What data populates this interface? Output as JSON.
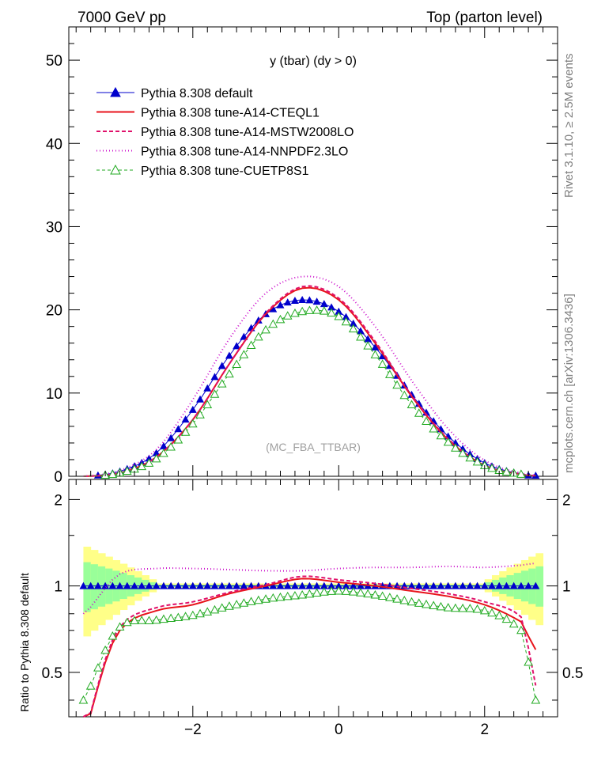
{
  "header": {
    "left": "7000 GeV pp",
    "right": "Top (parton level)"
  },
  "side_labels": {
    "rivet": "Rivet 3.1.10, ≥ 2.5M events",
    "mcplots": "mcplots.cern.ch [arXiv:1306.3436]"
  },
  "main_plot": {
    "title": "y (tbar) (dy > 0)",
    "watermark": "(MC_FBA_TTBAR)",
    "yticks": [
      "0",
      "10",
      "20",
      "30",
      "40",
      "50"
    ]
  },
  "ratio_plot": {
    "ylabel": "Ratio to Pythia 8.308 default",
    "yticks_left": [
      "0.5",
      "1",
      "2"
    ],
    "yticks_right": [
      "0.5",
      "1",
      "2"
    ]
  },
  "xaxis": {
    "ticks": [
      "−2",
      "0",
      "2"
    ]
  },
  "colors": {
    "default": "#0000cc",
    "cteql1": "#e8141c",
    "mstw": "#e0106a",
    "nnpdf": "#cc10cc",
    "cuetp8s1": "#22aa22",
    "band_inner": "#99ff99",
    "band_outer": "#ffff88"
  },
  "legend": [
    {
      "key": "default",
      "label": "Pythia 8.308 default",
      "style": "triangle-line"
    },
    {
      "key": "cteql1",
      "label": "Pythia 8.308 tune-A14-CTEQL1",
      "style": "solid"
    },
    {
      "key": "mstw",
      "label": "Pythia 8.308 tune-A14-MSTW2008LO",
      "style": "dashed"
    },
    {
      "key": "nnpdf",
      "label": "Pythia 8.308 tune-A14-NNPDF2.3LO",
      "style": "dotted"
    },
    {
      "key": "cuetp8s1",
      "label": "Pythia 8.308 tune-CUETP8S1",
      "style": "open-triangle-dashed"
    }
  ],
  "chart_data": [
    {
      "type": "line",
      "title": "y (tbar) (dy > 0)",
      "xlim": [
        -3.7,
        3.0
      ],
      "ylim": [
        0,
        54
      ],
      "x": [
        -3.5,
        -3.0,
        -2.5,
        -2.0,
        -1.5,
        -1.0,
        -0.5,
        0.0,
        0.5,
        1.0,
        1.5,
        2.0,
        2.5,
        2.7
      ],
      "series": [
        {
          "name": "Pythia 8.308 default",
          "values": [
            0.0,
            0.6,
            2.8,
            8.0,
            14.5,
            19.5,
            21.2,
            19.8,
            15.5,
            9.8,
            4.8,
            1.6,
            0.3,
            0.1
          ]
        },
        {
          "name": "Pythia 8.308 tune-A14-CTEQL1",
          "values": [
            0.0,
            0.4,
            2.3,
            6.8,
            13.5,
            19.5,
            22.6,
            21.2,
            16.0,
            9.6,
            4.4,
            1.3,
            0.25,
            0.08
          ]
        },
        {
          "name": "Pythia 8.308 tune-A14-MSTW2008LO",
          "values": [
            0.0,
            0.4,
            2.3,
            6.8,
            13.5,
            19.6,
            22.8,
            21.4,
            16.2,
            9.7,
            4.5,
            1.3,
            0.25,
            0.08
          ]
        },
        {
          "name": "Pythia 8.308 tune-A14-NNPDF2.3LO",
          "values": [
            0.0,
            0.7,
            3.2,
            9.2,
            16.5,
            22.0,
            24.0,
            22.8,
            18.0,
            11.5,
            5.7,
            1.9,
            0.4,
            0.12
          ]
        },
        {
          "name": "Pythia 8.308 tune-CUETP8S1",
          "values": [
            0.0,
            0.4,
            2.1,
            6.3,
            12.3,
            17.6,
            19.8,
            19.2,
            14.6,
            8.6,
            4.1,
            1.3,
            0.25,
            0.06
          ]
        }
      ]
    },
    {
      "type": "line",
      "ylabel": "Ratio to Pythia 8.308 default",
      "xlim": [
        -3.7,
        3.0
      ],
      "ylim": [
        0.35,
        2.35
      ],
      "log_y": true,
      "x": [
        -3.5,
        -3.0,
        -2.5,
        -2.0,
        -1.5,
        -1.0,
        -0.5,
        0.0,
        0.5,
        1.0,
        1.5,
        2.0,
        2.5,
        2.7
      ],
      "series": [
        {
          "name": "Pythia 8.308 default",
          "values": [
            1.0,
            1.0,
            1.0,
            1.0,
            1.0,
            1.0,
            1.0,
            1.0,
            1.0,
            1.0,
            1.0,
            1.0,
            1.0,
            1.0
          ]
        },
        {
          "name": "Pythia 8.308 tune-A14-CTEQL1",
          "values": [
            0.3,
            0.7,
            0.82,
            0.86,
            0.94,
            1.0,
            1.06,
            1.03,
            1.0,
            0.96,
            0.92,
            0.86,
            0.75,
            0.6
          ]
        },
        {
          "name": "Pythia 8.308 tune-A14-MSTW2008LO",
          "values": [
            0.3,
            0.72,
            0.84,
            0.88,
            0.95,
            1.01,
            1.08,
            1.05,
            1.02,
            0.98,
            0.94,
            0.88,
            0.78,
            0.45
          ]
        },
        {
          "name": "Pythia 8.308 tune-A14-NNPDF2.3LO",
          "values": [
            0.8,
            1.1,
            1.15,
            1.15,
            1.14,
            1.13,
            1.13,
            1.15,
            1.16,
            1.16,
            1.17,
            1.16,
            1.18,
            1.2
          ]
        },
        {
          "name": "Pythia 8.308 tune-CUETP8S1",
          "values": [
            0.4,
            0.72,
            0.76,
            0.79,
            0.85,
            0.9,
            0.93,
            0.96,
            0.93,
            0.88,
            0.84,
            0.82,
            0.7,
            0.4
          ]
        }
      ]
    }
  ]
}
